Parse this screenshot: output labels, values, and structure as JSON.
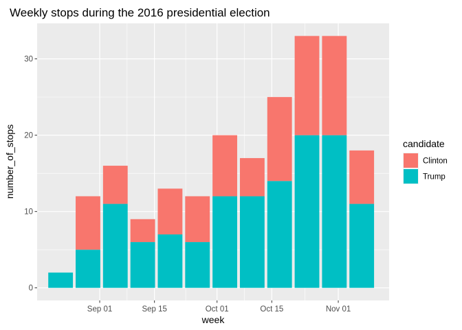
{
  "chart_data": {
    "type": "bar",
    "stacked": true,
    "title": "Weekly stops during the 2016 presidential election",
    "xlabel": "week",
    "ylabel": "number_of_stops",
    "x": [
      "2016-08-22",
      "2016-08-29",
      "2016-09-05",
      "2016-09-12",
      "2016-09-19",
      "2016-09-26",
      "2016-10-03",
      "2016-10-10",
      "2016-10-17",
      "2016-10-24",
      "2016-10-31",
      "2016-11-07"
    ],
    "series": [
      {
        "name": "Trump",
        "color": "#00BFC4",
        "values": [
          2,
          5,
          11,
          6,
          7,
          6,
          12,
          12,
          14,
          20,
          20,
          11
        ]
      },
      {
        "name": "Clinton",
        "color": "#F8766D",
        "values": [
          0,
          7,
          5,
          3,
          6,
          6,
          8,
          5,
          11,
          13,
          13,
          7
        ]
      }
    ],
    "x_ticks": [
      {
        "date": "2016-09-01",
        "label": "Sep 01"
      },
      {
        "date": "2016-09-15",
        "label": "Sep 15"
      },
      {
        "date": "2016-10-01",
        "label": "Oct 01"
      },
      {
        "date": "2016-10-15",
        "label": "Oct 15"
      },
      {
        "date": "2016-11-01",
        "label": "Nov 01"
      }
    ],
    "y_ticks": [
      0,
      10,
      20,
      30
    ],
    "ylim": [
      -1.65,
      34.65
    ],
    "xlim": [
      "2016-08-16",
      "2016-11-14"
    ],
    "grid": true,
    "legend": {
      "title": "candidate",
      "position": "right",
      "entries": [
        {
          "name": "Clinton",
          "color": "#F8766D"
        },
        {
          "name": "Trump",
          "color": "#00BFC4"
        }
      ]
    }
  }
}
